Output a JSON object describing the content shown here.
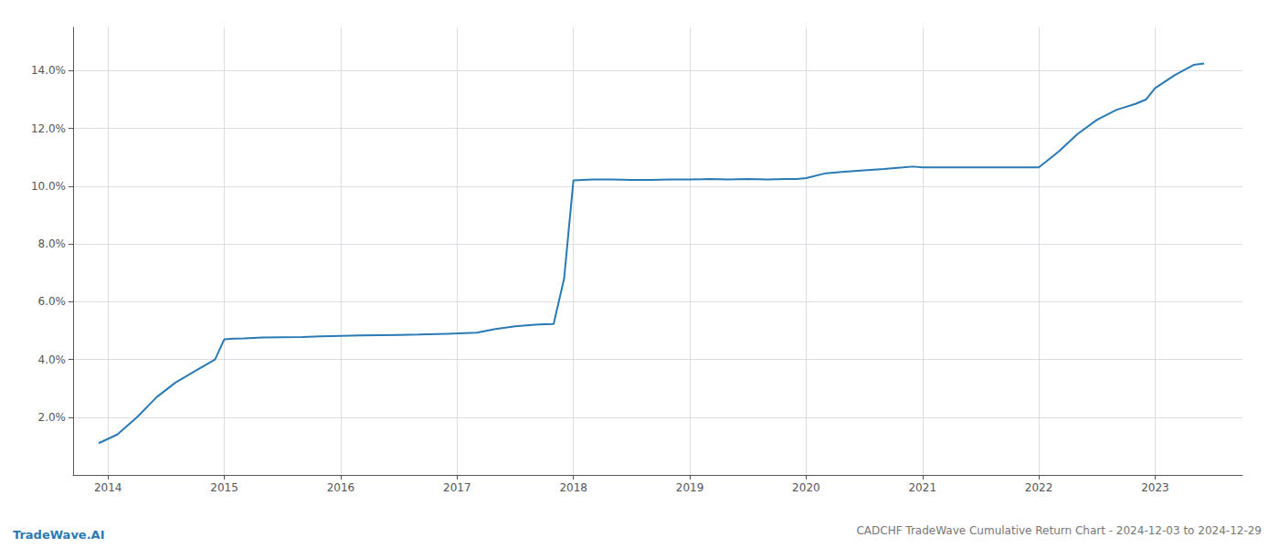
{
  "chart_data": {
    "type": "line",
    "title": "CADCHF TradeWave Cumulative Return Chart - 2024-12-03 to 2024-12-29",
    "annotations": [
      "TradeWave.AI"
    ],
    "color": "#2a7ab5",
    "x": [
      2013.92,
      2014.08,
      2014.25,
      2014.42,
      2014.58,
      2014.75,
      2014.92,
      2015.0,
      2015.08,
      2015.17,
      2015.33,
      2015.5,
      2015.67,
      2015.83,
      2015.92,
      2016.0,
      2016.17,
      2016.33,
      2016.5,
      2016.67,
      2016.83,
      2016.92,
      2017.0,
      2017.17,
      2017.33,
      2017.5,
      2017.67,
      2017.75,
      2017.83,
      2017.92,
      2018.0,
      2018.08,
      2018.17,
      2018.33,
      2018.5,
      2018.67,
      2018.83,
      2018.92,
      2019.0,
      2019.17,
      2019.33,
      2019.5,
      2019.67,
      2019.83,
      2019.92,
      2020.0,
      2020.17,
      2020.33,
      2020.5,
      2020.67,
      2020.83,
      2020.92,
      2021.0,
      2021.08,
      2021.17,
      2021.33,
      2021.5,
      2021.67,
      2021.83,
      2021.92,
      2022.0,
      2022.17,
      2022.33,
      2022.5,
      2022.67,
      2022.83,
      2022.92,
      2023.0,
      2023.17,
      2023.33,
      2023.42
    ],
    "values": [
      1.1,
      1.4,
      2.0,
      2.7,
      3.2,
      3.6,
      4.0,
      4.7,
      4.72,
      4.73,
      4.76,
      4.77,
      4.78,
      4.8,
      4.81,
      4.82,
      4.83,
      4.84,
      4.85,
      4.86,
      4.88,
      4.89,
      4.9,
      4.93,
      5.05,
      5.15,
      5.2,
      5.22,
      5.23,
      6.8,
      10.2,
      10.22,
      10.23,
      10.23,
      10.22,
      10.22,
      10.23,
      10.23,
      10.23,
      10.25,
      10.23,
      10.25,
      10.23,
      10.25,
      10.25,
      10.28,
      10.45,
      10.5,
      10.55,
      10.6,
      10.65,
      10.68,
      10.65,
      10.65,
      10.65,
      10.65,
      10.65,
      10.65,
      10.65,
      10.65,
      10.65,
      11.2,
      11.8,
      12.3,
      12.65,
      12.85,
      13.0,
      13.4,
      13.85,
      14.2,
      14.25
    ],
    "xlim": [
      2013.7,
      2023.75
    ],
    "xticks": [
      2014,
      2015,
      2016,
      2017,
      2018,
      2019,
      2020,
      2021,
      2022,
      2023
    ],
    "ylim": [
      0.0,
      15.5
    ],
    "yticks": [
      {
        "value": 2.0,
        "label": "2.0%"
      },
      {
        "value": 4.0,
        "label": "4.0%"
      },
      {
        "value": 6.0,
        "label": "6.0%"
      },
      {
        "value": 8.0,
        "label": "8.0%"
      },
      {
        "value": 10.0,
        "label": "10.0%"
      },
      {
        "value": 12.0,
        "label": "12.0%"
      },
      {
        "value": 14.0,
        "label": "14.0%"
      }
    ],
    "grid": true
  }
}
